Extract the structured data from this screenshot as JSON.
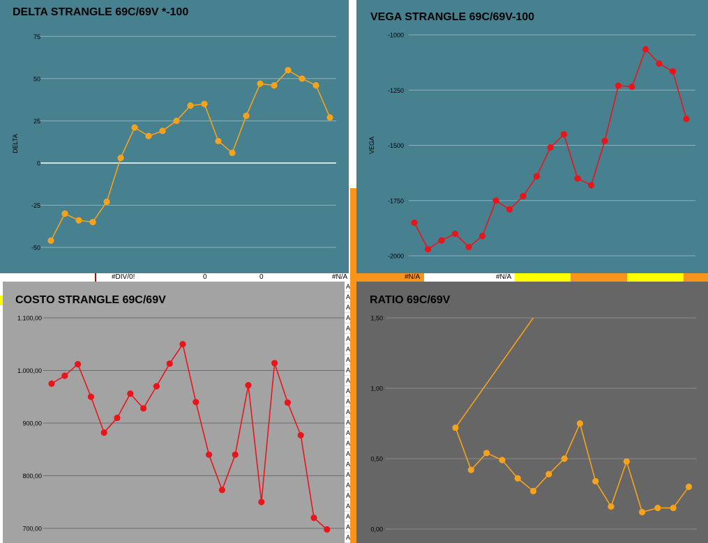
{
  "colors": {
    "delta_bg": "#47808f",
    "vega_bg": "#47808f",
    "costo_bg": "#a3a3a3",
    "ratio_bg": "#666666",
    "orange": "#f7a21b",
    "red": "#e8151b",
    "spreadsheet_orange": "#f7941d",
    "spreadsheet_yellow": "#ffff00"
  },
  "cells": {
    "div0": "#DIV/0!",
    "zero1": "0",
    "zero2": "0",
    "na1": "#N/A",
    "na2": "#N/A",
    "na3": "#N/A",
    "na_fragment": "A"
  },
  "chart_data": [
    {
      "id": "delta",
      "type": "line",
      "title": "DELTA STRANGLE 69C/69V *-100",
      "ylabel": "DELTA",
      "xlabel": "",
      "ylim": [
        -55,
        78
      ],
      "yticks": [
        75,
        50,
        25,
        0,
        -25,
        -50
      ],
      "ytick_labels": [
        "75",
        "50",
        "25",
        "0",
        "-25",
        "-50"
      ],
      "grid": true,
      "zero_line": true,
      "color": "#f7a21b",
      "values": [
        -46,
        -30,
        -34,
        -35,
        -23,
        3,
        21,
        16,
        19,
        25,
        34,
        35,
        13,
        6,
        28,
        47,
        46,
        55,
        50,
        46,
        27
      ]
    },
    {
      "id": "vega",
      "type": "line",
      "title": "VEGA STRANGLE 69C/69V-100",
      "ylabel": "VEGA",
      "xlabel": "",
      "ylim": [
        -2000,
        -1000
      ],
      "yticks": [
        -1000,
        -1250,
        -1500,
        -1750,
        -2000
      ],
      "ytick_labels": [
        "-1000",
        "-1250",
        "-1500",
        "-1750",
        "-2000"
      ],
      "grid": true,
      "color": "#e8151b",
      "values": [
        -1850,
        -1970,
        -1930,
        -1900,
        -1960,
        -1910,
        -1750,
        -1790,
        -1730,
        -1640,
        -1510,
        -1450,
        -1650,
        -1680,
        -1480,
        -1230,
        -1235,
        -1065,
        -1130,
        -1165,
        -1380
      ]
    },
    {
      "id": "costo",
      "type": "line",
      "title": "COSTO STRANGLE 69C/69V",
      "ylabel": "",
      "xlabel": "",
      "ylim": [
        700,
        1100
      ],
      "yticks": [
        1100,
        1000,
        900,
        800,
        700
      ],
      "ytick_labels": [
        "1.100,00",
        "1.000,00",
        "900,00",
        "800,00",
        "700,00"
      ],
      "grid": true,
      "color": "#e8151b",
      "values": [
        975,
        990,
        1012,
        950,
        882,
        910,
        956,
        928,
        970,
        1013,
        1050,
        940,
        840,
        773,
        840,
        972,
        750,
        1014,
        939,
        877,
        720,
        698
      ]
    },
    {
      "id": "ratio",
      "type": "line",
      "title": "RATIO 69C/69V",
      "ylabel": "",
      "xlabel": "",
      "ylim": [
        0,
        1.5
      ],
      "yticks": [
        1.5,
        1.0,
        0.5,
        0.0
      ],
      "ytick_labels": [
        "1,50",
        "1,00",
        "0,50",
        "0,00"
      ],
      "grid": true,
      "color": "#f7a21b",
      "line_start": {
        "x_index": 5,
        "value": 1.5
      },
      "values": [
        0.72,
        0.42,
        0.54,
        0.49,
        0.36,
        0.27,
        0.39,
        0.5,
        0.75,
        0.34,
        0.16,
        0.48,
        0.12,
        0.15,
        0.15,
        0.3
      ]
    }
  ]
}
